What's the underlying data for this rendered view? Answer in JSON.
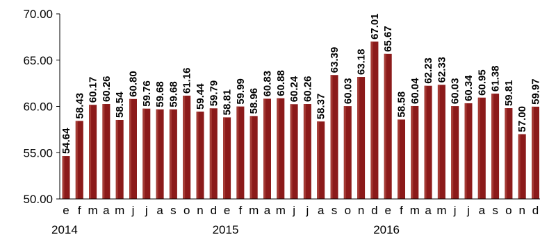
{
  "chart_data": {
    "type": "bar",
    "title": "",
    "xlabel": "",
    "ylabel": "",
    "ylim": [
      50,
      70
    ],
    "ytick_values": [
      50,
      55,
      60,
      65,
      70
    ],
    "ytick_labels": [
      "50.00",
      "55.00",
      "60.00",
      "65.00",
      "70.00"
    ],
    "grid": false,
    "bar_color": "#8B1A1A",
    "categories": [
      "e",
      "f",
      "m",
      "a",
      "m",
      "j",
      "j",
      "a",
      "s",
      "o",
      "n",
      "d",
      "e",
      "f",
      "m",
      "a",
      "m",
      "j",
      "j",
      "a",
      "s",
      "o",
      "n",
      "d",
      "e",
      "f",
      "m",
      "a",
      "m",
      "j",
      "j",
      "a",
      "s",
      "o",
      "n",
      "d"
    ],
    "year_labels": [
      "2014",
      "2015",
      "2016"
    ],
    "year_start_index": [
      0,
      12,
      24
    ],
    "values": [
      54.64,
      58.43,
      60.17,
      60.26,
      58.54,
      60.8,
      59.76,
      59.68,
      59.68,
      61.16,
      59.44,
      59.79,
      58.81,
      59.99,
      58.96,
      60.83,
      60.88,
      60.24,
      60.26,
      58.37,
      63.39,
      60.03,
      63.18,
      67.01,
      65.67,
      58.58,
      60.04,
      62.23,
      62.33,
      60.03,
      60.34,
      60.95,
      61.38,
      59.81,
      57.0,
      59.97
    ],
    "value_labels": [
      "54.64",
      "58.43",
      "60.17",
      "60.26",
      "58.54",
      "60.80",
      "59.76",
      "59.68",
      "59.68",
      "61.16",
      "59.44",
      "59.79",
      "58.81",
      "59.99",
      "58.96",
      "60.83",
      "60.88",
      "60.24",
      "60.26",
      "58.37",
      "63.39",
      "60.03",
      "63.18",
      "67.01",
      "65.67",
      "58.58",
      "60.04",
      "62.23",
      "62.33",
      "60.03",
      "60.34",
      "60.95",
      "61.38",
      "59.81",
      "57.00",
      "59.97"
    ]
  }
}
